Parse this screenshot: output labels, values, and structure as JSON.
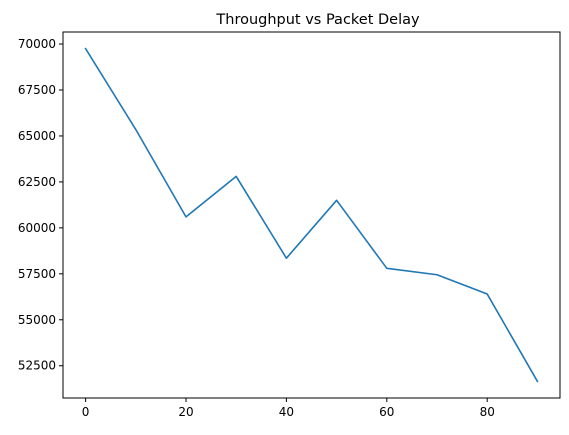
{
  "chart_data": {
    "type": "line",
    "title": "Throughput vs Packet Delay",
    "xlabel": "",
    "ylabel": "",
    "x": [
      0,
      10,
      20,
      30,
      40,
      50,
      60,
      70,
      80,
      90
    ],
    "series": [
      {
        "name": "Throughput",
        "color": "#1f77b4",
        "values": [
          69750,
          65350,
          60600,
          62800,
          58350,
          61500,
          57800,
          57450,
          56400,
          51650
        ]
      }
    ],
    "xlim": [
      -4.5,
      94.5
    ],
    "ylim": [
      50745,
      70655
    ],
    "xticks": [
      0,
      20,
      40,
      60,
      80
    ],
    "yticks": [
      52500,
      55000,
      57500,
      60000,
      62500,
      65000,
      67500,
      70000
    ],
    "xtick_labels": [
      "0",
      "20",
      "40",
      "60",
      "80"
    ],
    "ytick_labels": [
      "52500",
      "55000",
      "57500",
      "60000",
      "62500",
      "65000",
      "67500",
      "70000"
    ],
    "grid": false,
    "legend": "none"
  }
}
